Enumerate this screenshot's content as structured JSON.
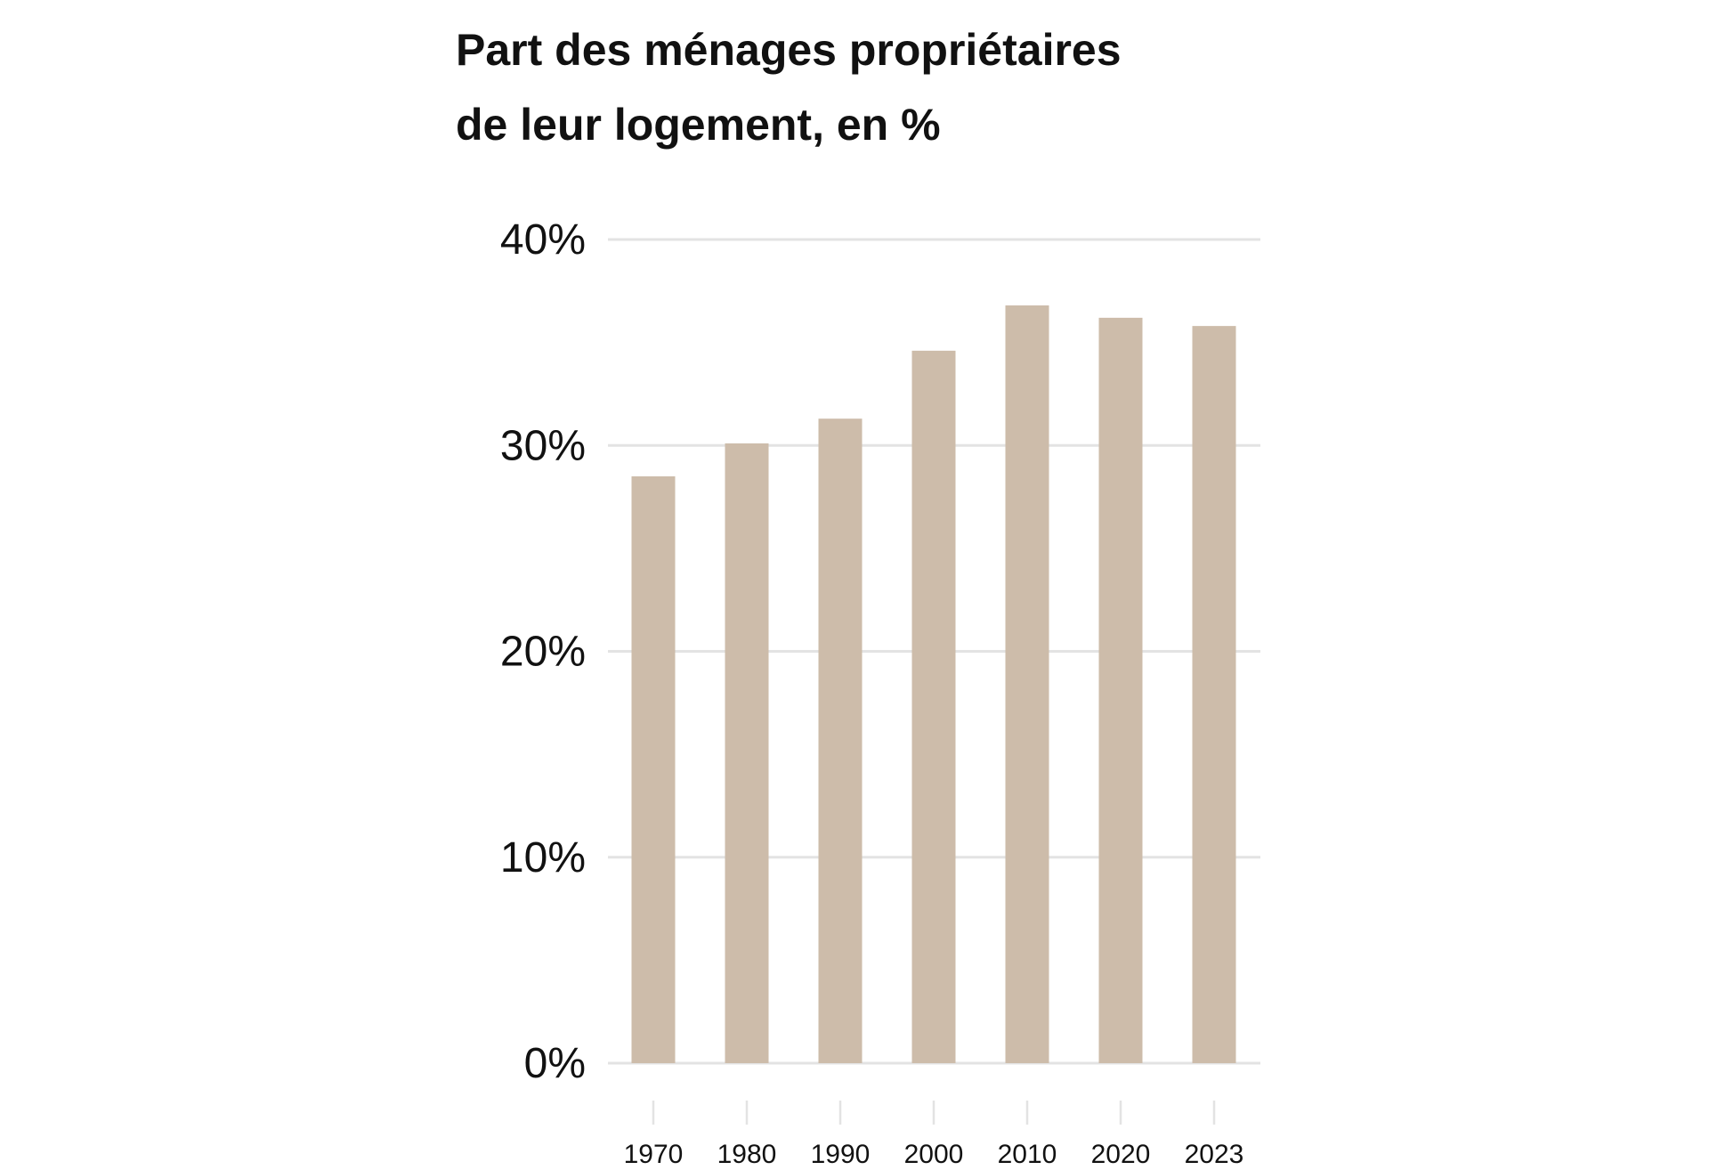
{
  "chart_data": {
    "type": "bar",
    "title": "Part des ménages propriétaires de leur logement, en %",
    "title_lines": [
      "Part des ménages propriétaires",
      "de leur logement, en %"
    ],
    "categories": [
      "1970",
      "1980",
      "1990",
      "2000",
      "2010",
      "2020",
      "2023"
    ],
    "values": [
      28.5,
      30.1,
      31.3,
      34.6,
      36.8,
      36.2,
      35.8
    ],
    "xlabel": "",
    "ylabel": "",
    "ylim": [
      0,
      40
    ],
    "yticks": [
      0,
      10,
      20,
      30,
      40
    ],
    "ytick_labels": [
      "0%",
      "10%",
      "20%",
      "30%",
      "40%"
    ],
    "grid": true,
    "bar_color": "#cdbcaa",
    "grid_color": "#e3e3e3"
  }
}
